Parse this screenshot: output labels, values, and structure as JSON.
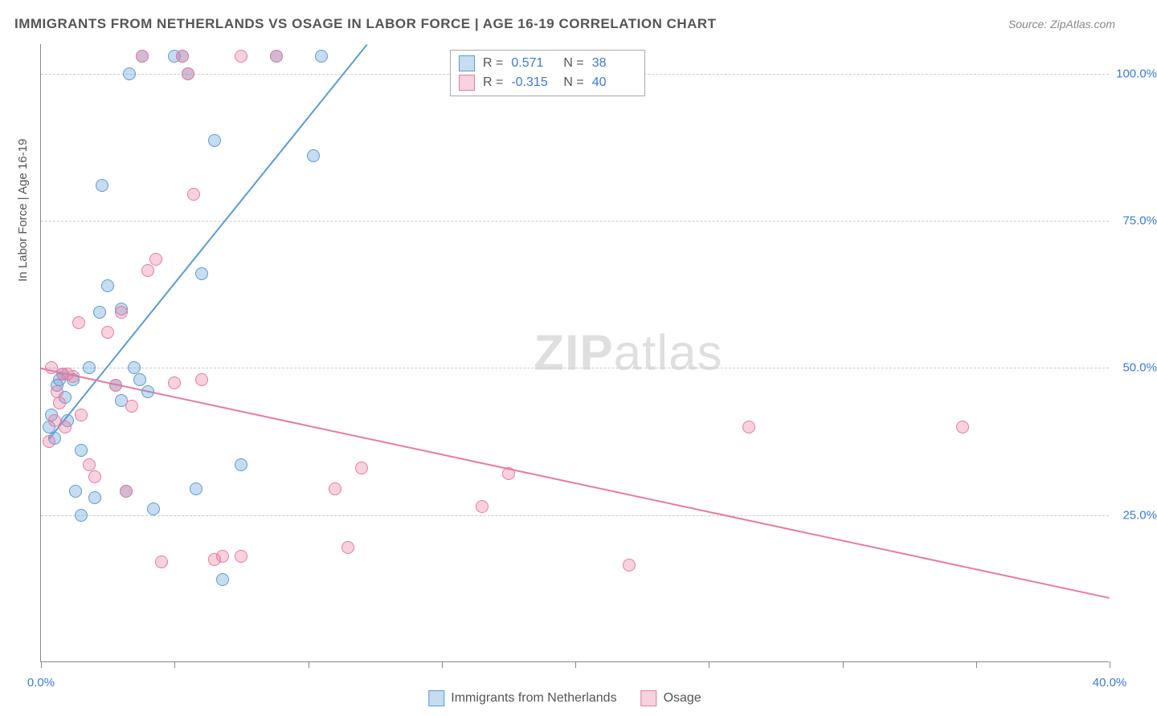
{
  "title": "IMMIGRANTS FROM NETHERLANDS VS OSAGE IN LABOR FORCE | AGE 16-19 CORRELATION CHART",
  "source": "Source: ZipAtlas.com",
  "y_axis_title": "In Labor Force | Age 16-19",
  "watermark_bold": "ZIP",
  "watermark_rest": "atlas",
  "chart": {
    "type": "scatter",
    "background_color": "#ffffff",
    "grid_color": "#cccccc",
    "axis_color": "#888888",
    "label_color": "#3a7bd5",
    "xlim": [
      0,
      40
    ],
    "ylim": [
      0,
      105
    ],
    "x_ticks": [
      0,
      5,
      10,
      15,
      20,
      25,
      30,
      35,
      40
    ],
    "x_tick_labels": {
      "0": "0.0%",
      "40": "40.0%"
    },
    "y_gridlines": [
      25,
      50,
      75,
      100
    ],
    "y_tick_labels": {
      "25": "25.0%",
      "50": "50.0%",
      "75": "75.0%",
      "100": "100.0%"
    },
    "marker_radius": 8,
    "marker_fill_opacity": 0.35,
    "line_width": 2
  },
  "series": [
    {
      "name": "Immigrants from Netherlands",
      "color": "#5b9bd5",
      "fill": "rgba(91,155,213,0.35)",
      "r": "0.571",
      "n": "38",
      "trend_line": {
        "x1": 0.3,
        "y1": 38,
        "x2": 12.2,
        "y2": 105
      },
      "points": [
        [
          0.3,
          40
        ],
        [
          0.4,
          42
        ],
        [
          0.5,
          38
        ],
        [
          0.6,
          47
        ],
        [
          0.7,
          48
        ],
        [
          0.8,
          49
        ],
        [
          0.9,
          45
        ],
        [
          1.0,
          41
        ],
        [
          1.2,
          48
        ],
        [
          1.3,
          29
        ],
        [
          1.5,
          25
        ],
        [
          1.5,
          36
        ],
        [
          1.8,
          50
        ],
        [
          2.0,
          28
        ],
        [
          2.2,
          59.5
        ],
        [
          2.3,
          81
        ],
        [
          2.5,
          64
        ],
        [
          2.8,
          47
        ],
        [
          3.0,
          44.5
        ],
        [
          3.0,
          60
        ],
        [
          3.2,
          29
        ],
        [
          3.3,
          100
        ],
        [
          3.5,
          50
        ],
        [
          3.7,
          48
        ],
        [
          3.8,
          103
        ],
        [
          4.0,
          46
        ],
        [
          4.2,
          26
        ],
        [
          5.0,
          103
        ],
        [
          5.3,
          103
        ],
        [
          5.5,
          100
        ],
        [
          5.8,
          29.5
        ],
        [
          6.0,
          66
        ],
        [
          6.5,
          88.7
        ],
        [
          6.8,
          14
        ],
        [
          7.5,
          33.5
        ],
        [
          8.8,
          103
        ],
        [
          10.2,
          86
        ],
        [
          10.5,
          103
        ]
      ]
    },
    {
      "name": "Osage",
      "color": "#e77ba0",
      "fill": "rgba(231,123,160,0.35)",
      "r": "-0.315",
      "n": "40",
      "trend_line": {
        "x1": 0,
        "y1": 50,
        "x2": 40,
        "y2": 11
      },
      "points": [
        [
          0.3,
          37.5
        ],
        [
          0.4,
          50
        ],
        [
          0.5,
          41
        ],
        [
          0.6,
          46
        ],
        [
          0.7,
          44
        ],
        [
          0.8,
          49
        ],
        [
          0.9,
          40
        ],
        [
          1.0,
          49
        ],
        [
          1.2,
          48.5
        ],
        [
          1.4,
          57.7
        ],
        [
          1.5,
          42
        ],
        [
          1.8,
          33.5
        ],
        [
          2.0,
          31.5
        ],
        [
          2.5,
          56
        ],
        [
          2.8,
          47
        ],
        [
          3.0,
          59.5
        ],
        [
          3.2,
          29
        ],
        [
          3.4,
          43.5
        ],
        [
          3.8,
          103
        ],
        [
          4.0,
          66.5
        ],
        [
          4.3,
          68.5
        ],
        [
          4.5,
          17
        ],
        [
          5.0,
          47.5
        ],
        [
          5.3,
          103
        ],
        [
          5.5,
          100
        ],
        [
          5.7,
          79.5
        ],
        [
          6.0,
          48
        ],
        [
          6.5,
          17.5
        ],
        [
          6.8,
          18
        ],
        [
          7.5,
          18
        ],
        [
          7.5,
          103
        ],
        [
          8.8,
          103
        ],
        [
          11.0,
          29.5
        ],
        [
          11.5,
          19.5
        ],
        [
          12.0,
          33
        ],
        [
          16.5,
          26.5
        ],
        [
          17.5,
          32
        ],
        [
          22.0,
          16.5
        ],
        [
          26.5,
          40
        ],
        [
          34.5,
          40
        ]
      ]
    }
  ],
  "legend_top_labels": {
    "r": "R =",
    "n": "N ="
  }
}
